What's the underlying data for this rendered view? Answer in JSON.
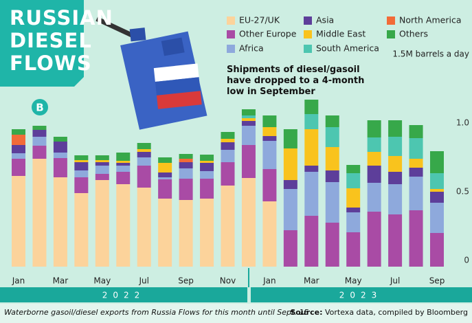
{
  "chart_data": {
    "type": "stacked-bar",
    "title": "RUSSIAN DIESEL FLOWS",
    "subtitle": "Shipments of diesel/gasoil have dropped to a 4-month low in September",
    "logo": "B",
    "categories": [
      "Jan",
      null,
      "Mar",
      null,
      "May",
      null,
      "Jul",
      null,
      "Sep",
      null,
      "Nov",
      null,
      "Jan",
      null,
      "Mar",
      null,
      "May",
      null,
      "Jul",
      null,
      "Sep"
    ],
    "years": [
      "2022",
      "2023"
    ],
    "ylim": [
      0,
      1.5
    ],
    "yticks": [
      0,
      0.5,
      {
        "value": 1,
        "label": "1.0"
      },
      {
        "value": 1.5,
        "label": "1.5M barrels a day"
      }
    ],
    "grid": false,
    "series": [
      {
        "name": "EU-27/UK",
        "color": "#fcd39b",
        "values": [
          0.66,
          0.785,
          0.65,
          0.535,
          0.63,
          0.6,
          0.575,
          0.495,
          0.485,
          0.495,
          0.59,
          0.645,
          0.475,
          0,
          0,
          0,
          0,
          0,
          0,
          0,
          0
        ]
      },
      {
        "name": "Other Europe",
        "color": "#a94ba5",
        "values": [
          0.125,
          0.095,
          0.14,
          0.115,
          0.045,
          0.09,
          0.16,
          0.14,
          0.155,
          0.145,
          0.17,
          0.24,
          0.235,
          0.265,
          0.37,
          0.32,
          0.25,
          0.4,
          0.38,
          0.41,
          0.245
        ]
      },
      {
        "name": "Africa",
        "color": "#8ea9dc",
        "values": [
          0.04,
          0.065,
          0.04,
          0.05,
          0.06,
          0.045,
          0.06,
          0.015,
          0.075,
          0.055,
          0.09,
          0.14,
          0.205,
          0.3,
          0.32,
          0.295,
          0.145,
          0.21,
          0.22,
          0.245,
          0.22
        ]
      },
      {
        "name": "Asia",
        "color": "#5d3e9a",
        "values": [
          0.06,
          0.05,
          0.08,
          0.06,
          0.025,
          0.02,
          0.04,
          0.035,
          0.045,
          0.06,
          0.055,
          0.035,
          0.035,
          0.065,
          0.045,
          0.085,
          0.035,
          0.125,
          0.09,
          0.065,
          0.08
        ]
      },
      {
        "name": "Middle East",
        "color": "#f9c31d",
        "values": [
          0,
          0,
          0,
          0.015,
          0.015,
          0.015,
          0.02,
          0.07,
          0,
          0.015,
          0.025,
          0.02,
          0.065,
          0.23,
          0.265,
          0.17,
          0.14,
          0.1,
          0.115,
          0.065,
          0.02
        ]
      },
      {
        "name": "South America",
        "color": "#4dc6b0",
        "values": [
          0,
          0,
          0,
          0,
          0,
          0,
          0,
          0,
          0,
          0,
          0,
          0.02,
          0,
          0,
          0.11,
          0.145,
          0.11,
          0.105,
          0.14,
          0.15,
          0.115
        ]
      },
      {
        "name": "North America",
        "color": "#f26b38",
        "values": [
          0.075,
          0,
          0,
          0,
          0,
          0,
          0,
          0,
          0.025,
          0,
          0,
          0,
          0,
          0,
          0,
          0,
          0,
          0,
          0,
          0,
          0
        ]
      },
      {
        "name": "Others",
        "color": "#37a84a",
        "values": [
          0.04,
          0.03,
          0.035,
          0.035,
          0.035,
          0.06,
          0.045,
          0.04,
          0.035,
          0.045,
          0.05,
          0.045,
          0.085,
          0.14,
          0.105,
          0.085,
          0.06,
          0.125,
          0.12,
          0.095,
          0.16
        ]
      }
    ],
    "footnote": "Waterborne gasoil/diesel exports from Russia Flows for this month until Sept. 15",
    "source_label": "Source:",
    "source": "Vortexa data, compiled by Bloomberg"
  }
}
